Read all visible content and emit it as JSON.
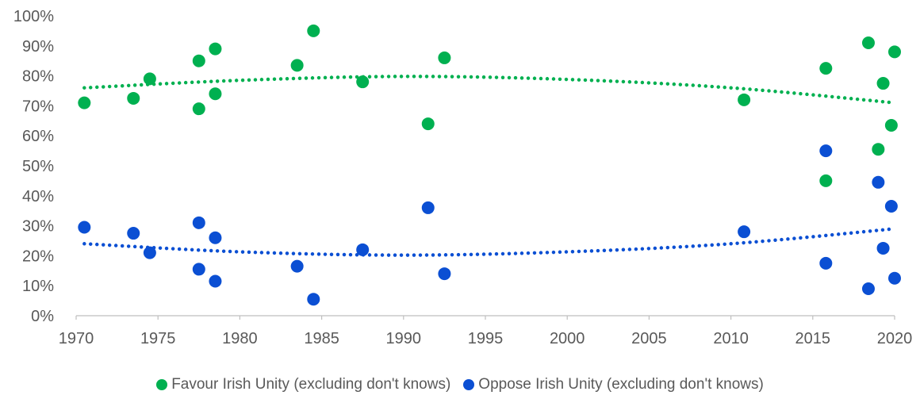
{
  "chart_data": {
    "type": "scatter",
    "title": "",
    "xlabel": "",
    "ylabel": "",
    "xlim": [
      1970,
      2020
    ],
    "ylim": [
      0,
      100
    ],
    "x_ticks": [
      "1970",
      "1975",
      "1980",
      "1985",
      "1990",
      "1995",
      "2000",
      "2005",
      "2010",
      "2015",
      "2020"
    ],
    "y_ticks": [
      "0%",
      "10%",
      "20%",
      "30%",
      "40%",
      "50%",
      "60%",
      "70%",
      "80%",
      "90%",
      "100%"
    ],
    "grid": false,
    "legend_position": "bottom",
    "series": [
      {
        "name": "Favour Irish Unity (excluding don't knows)",
        "color": "#00B050",
        "points": [
          [
            1970.5,
            71
          ],
          [
            1973.5,
            72.5
          ],
          [
            1974.5,
            79
          ],
          [
            1977.5,
            69
          ],
          [
            1977.5,
            85
          ],
          [
            1978.5,
            74
          ],
          [
            1978.5,
            89
          ],
          [
            1983.5,
            83.5
          ],
          [
            1984.5,
            95
          ],
          [
            1987.5,
            78
          ],
          [
            1991.5,
            64
          ],
          [
            1992.5,
            86
          ],
          [
            2010.8,
            72
          ],
          [
            2015.8,
            82.5
          ],
          [
            2015.8,
            45
          ],
          [
            2018.4,
            91
          ],
          [
            2019.0,
            55.5
          ],
          [
            2019.3,
            77.5
          ],
          [
            2019.8,
            63.5
          ],
          [
            2020.0,
            88
          ]
        ],
        "trendline": [
          [
            1970.5,
            76
          ],
          [
            1980,
            78.5
          ],
          [
            1990,
            79.8
          ],
          [
            2000,
            78.8
          ],
          [
            2010,
            76
          ],
          [
            2020,
            71
          ]
        ]
      },
      {
        "name": "Oppose Irish Unity (excluding don't knows)",
        "color": "#0B4FD3",
        "points": [
          [
            1970.5,
            29.5
          ],
          [
            1973.5,
            27.5
          ],
          [
            1974.5,
            21
          ],
          [
            1977.5,
            31
          ],
          [
            1977.5,
            15.5
          ],
          [
            1978.5,
            26
          ],
          [
            1978.5,
            11.5
          ],
          [
            1983.5,
            16.5
          ],
          [
            1984.5,
            5.5
          ],
          [
            1987.5,
            22
          ],
          [
            1991.5,
            36
          ],
          [
            1992.5,
            14
          ],
          [
            2010.8,
            28
          ],
          [
            2015.8,
            55
          ],
          [
            2015.8,
            17.5
          ],
          [
            2018.4,
            9
          ],
          [
            2019.0,
            44.5
          ],
          [
            2019.3,
            22.5
          ],
          [
            2019.8,
            36.5
          ],
          [
            2020.0,
            12.5
          ]
        ],
        "trendline": [
          [
            1970.5,
            24
          ],
          [
            1980,
            21.3
          ],
          [
            1990,
            20.2
          ],
          [
            2000,
            21.3
          ],
          [
            2010,
            24
          ],
          [
            2020,
            29
          ]
        ]
      }
    ]
  }
}
